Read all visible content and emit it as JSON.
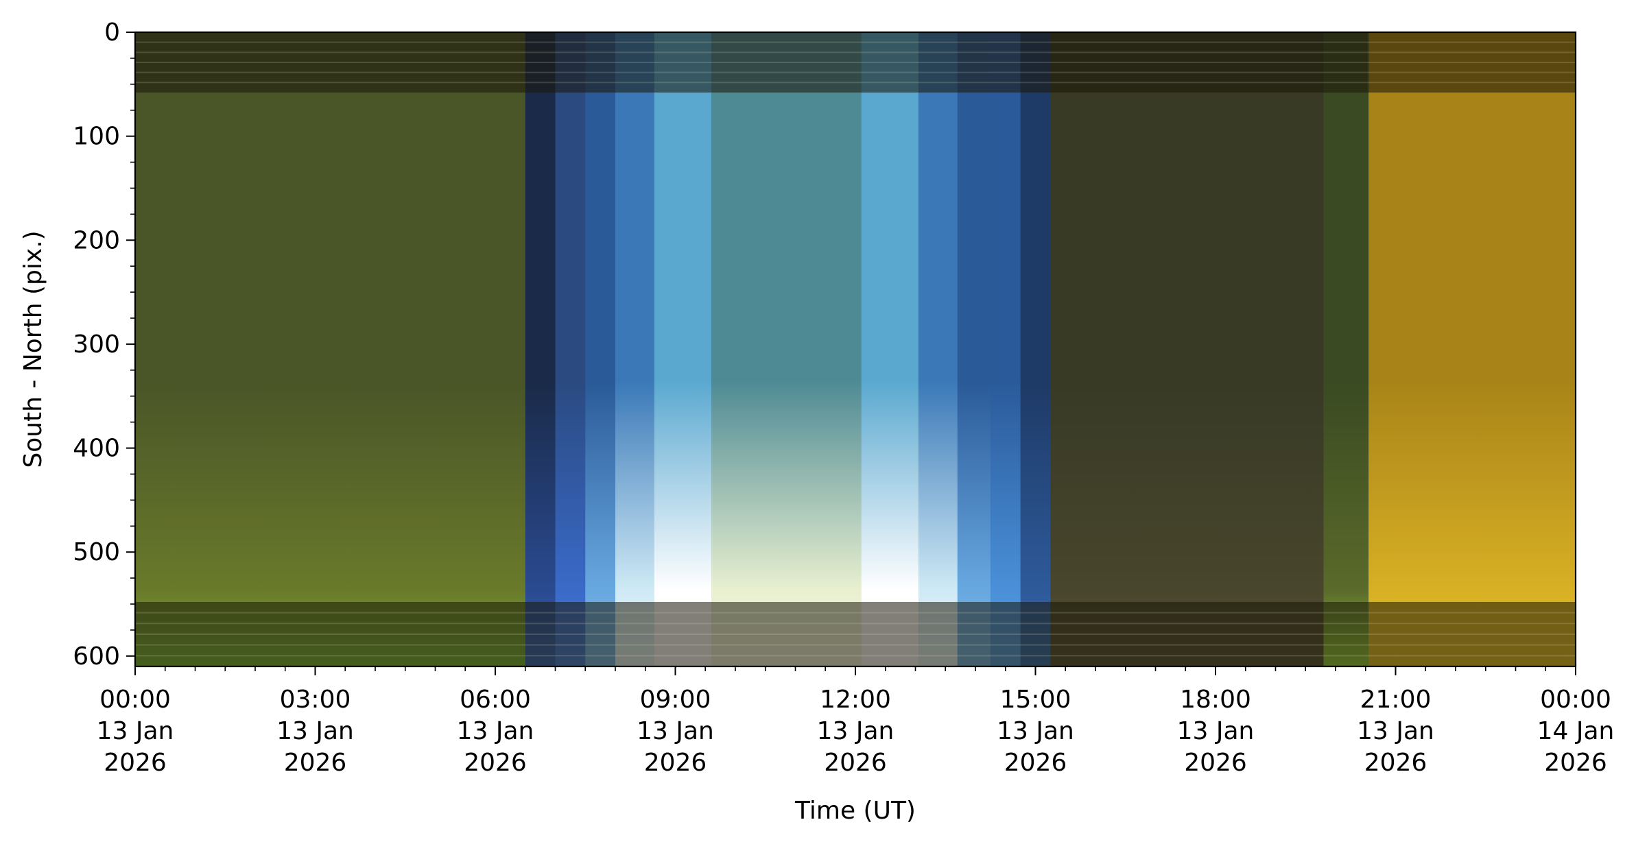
{
  "chart_data": {
    "type": "heatmap",
    "title": "",
    "xlabel": "Time (UT)",
    "ylabel": "South - North (pix.)",
    "x_ticks": [
      {
        "hour": 0,
        "lines": [
          "00:00",
          "13 Jan",
          "2026"
        ]
      },
      {
        "hour": 3,
        "lines": [
          "03:00",
          "13 Jan",
          "2026"
        ]
      },
      {
        "hour": 6,
        "lines": [
          "06:00",
          "13 Jan",
          "2026"
        ]
      },
      {
        "hour": 9,
        "lines": [
          "09:00",
          "13 Jan",
          "2026"
        ]
      },
      {
        "hour": 12,
        "lines": [
          "12:00",
          "13 Jan",
          "2026"
        ]
      },
      {
        "hour": 15,
        "lines": [
          "15:00",
          "13 Jan",
          "2026"
        ]
      },
      {
        "hour": 18,
        "lines": [
          "18:00",
          "13 Jan",
          "2026"
        ]
      },
      {
        "hour": 21,
        "lines": [
          "21:00",
          "13 Jan",
          "2026"
        ]
      },
      {
        "hour": 24,
        "lines": [
          "00:00",
          "14 Jan",
          "2026"
        ]
      }
    ],
    "x_minor_step_hours": 0.5,
    "xlim_hours": [
      0,
      24
    ],
    "y_ticks": [
      0,
      100,
      200,
      300,
      400,
      500,
      600
    ],
    "y_minor_step": 25,
    "ylim": [
      610,
      0
    ],
    "grid": false,
    "legend": "none",
    "bands": [
      {
        "from": 0.0,
        "to": 6.5,
        "top": "#4a5528",
        "bottom": "#6a7a2a",
        "glow": "#7ab83a"
      },
      {
        "from": 6.5,
        "to": 7.0,
        "top": "#1a2a48",
        "bottom": "#2a4a90",
        "glow": "#3a6ab8"
      },
      {
        "from": 7.0,
        "to": 7.5,
        "top": "#2a4a80",
        "bottom": "#3a6ac8",
        "glow": "#4a80d8"
      },
      {
        "from": 7.5,
        "to": 8.0,
        "top": "#2a5a98",
        "bottom": "#68a8e0",
        "glow": "#7ab8e8"
      },
      {
        "from": 8.0,
        "to": 8.65,
        "top": "#3a78b8",
        "bottom": "#cfeaf5",
        "glow": "#e8f6fa"
      },
      {
        "from": 8.65,
        "to": 9.6,
        "top": "#5aa8d0",
        "bottom": "#ffffff",
        "glow": "#ffffff"
      },
      {
        "from": 9.6,
        "to": 12.1,
        "top": "#4e8a94",
        "bottom": "#e8f0d0",
        "glow": "#f6f8e4"
      },
      {
        "from": 12.1,
        "to": 13.05,
        "top": "#5aa8d0",
        "bottom": "#ffffff",
        "glow": "#ffffff"
      },
      {
        "from": 13.05,
        "to": 13.7,
        "top": "#3a78b8",
        "bottom": "#cfeaf5",
        "glow": "#e8f6fa"
      },
      {
        "from": 13.7,
        "to": 14.25,
        "top": "#2a5a98",
        "bottom": "#68a8e0",
        "glow": "#7ab8e8"
      },
      {
        "from": 14.25,
        "to": 14.75,
        "top": "#2a5a9a",
        "bottom": "#4a90d8",
        "glow": "#5aa0e0"
      },
      {
        "from": 14.75,
        "to": 15.25,
        "top": "#1e3a66",
        "bottom": "#2e5a9a",
        "glow": "#3a70b0"
      },
      {
        "from": 15.25,
        "to": 19.8,
        "top": "#383a26",
        "bottom": "#48462c",
        "glow": "#585438"
      },
      {
        "from": 19.8,
        "to": 20.55,
        "top": "#3a4a22",
        "bottom": "#5a6a2a",
        "glow": "#9ad040"
      },
      {
        "from": 20.55,
        "to": 24.0,
        "top": "#a88418",
        "bottom": "#d8b024",
        "glow": "#e6c02a"
      }
    ],
    "hband_rows": [
      [
        0,
        58
      ],
      [
        548,
        610
      ]
    ]
  }
}
